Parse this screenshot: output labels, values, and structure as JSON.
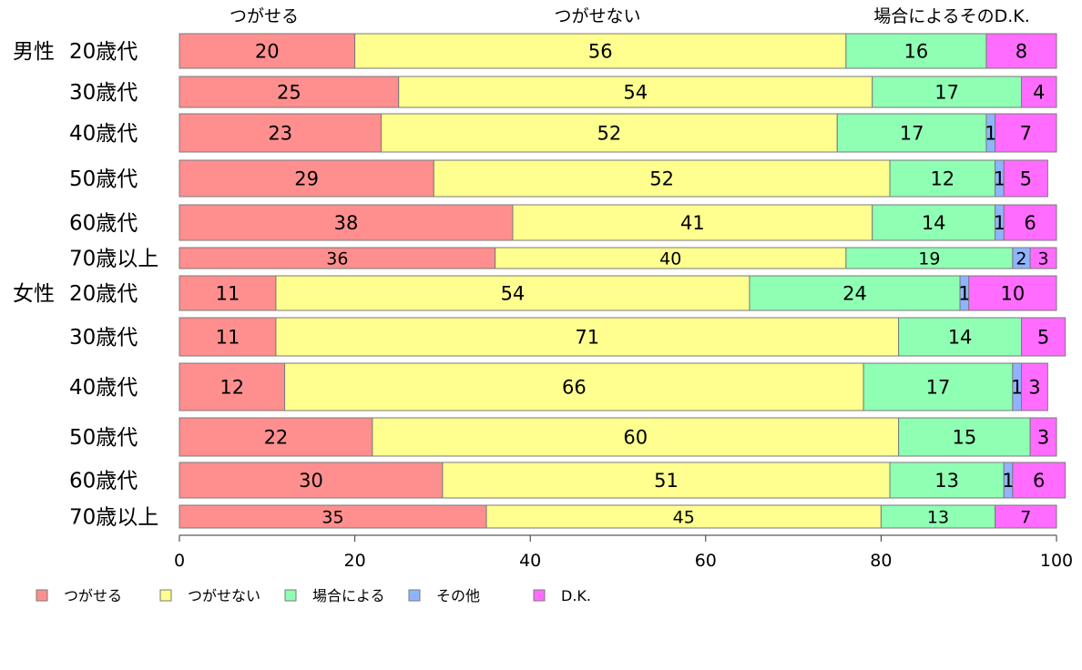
{
  "chart_data": {
    "type": "bar",
    "orientation": "horizontal",
    "stacked": true,
    "xlim": [
      0,
      100
    ],
    "xticks": [
      "0",
      "20",
      "40",
      "60",
      "80",
      "100"
    ],
    "top_labels": [
      "つがせる",
      "つがせない",
      "場合によるそのD.K."
    ],
    "groups": [
      "男性",
      "女性"
    ],
    "categories": [
      "20歳代",
      "30歳代",
      "40歳代",
      "50歳代",
      "60歳代",
      "70歳以上",
      "20歳代",
      "30歳代",
      "40歳代",
      "50歳代",
      "60歳代",
      "70歳以上"
    ],
    "series": [
      {
        "name": "つがせる",
        "color": "#ff8f8f",
        "values": [
          20,
          25,
          23,
          29,
          38,
          36,
          11,
          11,
          12,
          22,
          30,
          35
        ]
      },
      {
        "name": "つがせない",
        "color": "#ffff8f",
        "values": [
          56,
          54,
          52,
          52,
          41,
          40,
          54,
          71,
          66,
          60,
          51,
          45
        ]
      },
      {
        "name": "場合による",
        "color": "#8fffb4",
        "values": [
          16,
          17,
          17,
          12,
          14,
          19,
          24,
          14,
          17,
          15,
          13,
          13
        ]
      },
      {
        "name": "その他",
        "color": "#8fb4ff",
        "values": [
          0,
          0,
          1,
          1,
          1,
          2,
          1,
          0,
          1,
          0,
          1,
          0
        ]
      },
      {
        "name": "D.K.",
        "color": "#ff6cff",
        "values": [
          8,
          4,
          7,
          5,
          6,
          3,
          10,
          5,
          3,
          3,
          6,
          7
        ]
      }
    ],
    "legend_position": "bottom"
  }
}
